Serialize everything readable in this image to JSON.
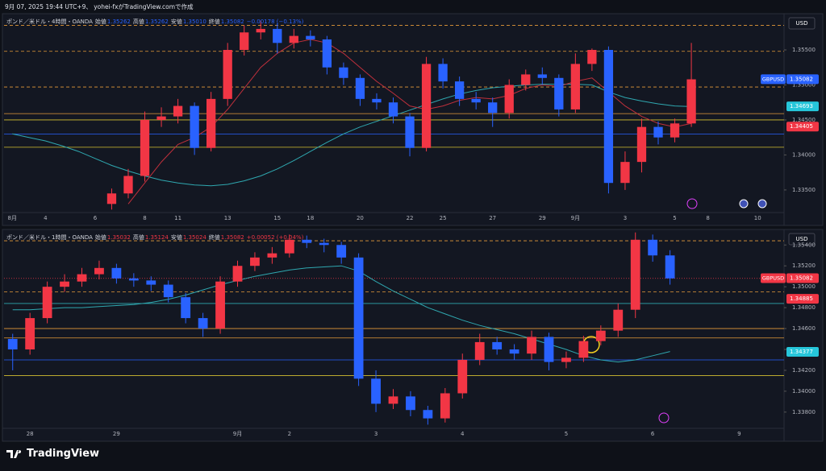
{
  "header": "9月 07, 2025 19:44 UTC+9、 yohei-fxがTradingView.comで作成",
  "footer": "TradingView",
  "chart_data": [
    {
      "type": "candlestick",
      "title": "ポンド／米ドル・4時間・OANDA",
      "currency": "USD",
      "symbol": "GBPUSD",
      "info": [
        {
          "label": "始値",
          "value": "1.35262"
        },
        {
          "label": "高値",
          "value": "1.35262"
        },
        {
          "label": "安値",
          "value": "1.35010"
        },
        {
          "label": "終値",
          "value": "1.35082"
        }
      ],
      "change": "−0.00178 (−0.13%)",
      "info_color": "#2962ff",
      "up_color": "#f23645",
      "down_color": "#2962ff",
      "categories": [
        "8月",
        null,
        "4",
        null,
        null,
        "6",
        null,
        null,
        "8",
        null,
        "11",
        null,
        null,
        "13",
        null,
        null,
        "15",
        null,
        "18",
        null,
        null,
        "20",
        null,
        null,
        "22",
        null,
        "25",
        null,
        null,
        "27",
        null,
        null,
        "29",
        null,
        "9月",
        null,
        null,
        "3",
        null,
        null,
        "5",
        null,
        "8",
        null,
        null,
        "10",
        null
      ],
      "open": [
        null,
        null,
        null,
        null,
        null,
        null,
        1.333,
        1.3345,
        1.337,
        1.345,
        1.3455,
        1.347,
        1.341,
        1.348,
        1.355,
        1.3575,
        1.358,
        1.356,
        1.357,
        1.3565,
        1.3525,
        1.351,
        1.348,
        1.3475,
        1.3455,
        1.341,
        1.353,
        1.3505,
        1.348,
        1.3475,
        1.346,
        1.35,
        1.3515,
        1.351,
        1.3465,
        1.353,
        1.355,
        1.336,
        1.339,
        1.344,
        1.3425,
        1.3445,
        null,
        null,
        null,
        null,
        null
      ],
      "high": [
        null,
        null,
        null,
        null,
        null,
        null,
        1.3352,
        1.338,
        1.3462,
        1.3468,
        1.348,
        1.3475,
        1.349,
        1.356,
        1.3585,
        1.3592,
        1.3588,
        1.358,
        1.3578,
        1.357,
        1.3532,
        1.3515,
        1.3488,
        1.3482,
        1.346,
        1.354,
        1.3538,
        1.3512,
        1.349,
        1.3482,
        1.3508,
        1.3522,
        1.3525,
        1.3515,
        1.3545,
        1.3552,
        1.3555,
        1.3405,
        1.3452,
        1.3448,
        1.3452,
        1.356,
        null,
        null,
        null,
        null,
        null
      ],
      "low": [
        null,
        null,
        null,
        null,
        null,
        null,
        1.3322,
        1.3338,
        1.3362,
        1.344,
        1.3445,
        1.34,
        1.3405,
        1.347,
        1.3542,
        1.3565,
        1.3545,
        1.3552,
        1.3555,
        1.3515,
        1.35,
        1.347,
        1.3465,
        1.3445,
        1.3398,
        1.3405,
        1.3495,
        1.347,
        1.3465,
        1.344,
        1.3452,
        1.3492,
        1.35,
        1.3455,
        1.346,
        1.352,
        1.3345,
        1.335,
        1.3375,
        1.3415,
        1.3418,
        1.344,
        null,
        null,
        null,
        null,
        null
      ],
      "close": [
        null,
        null,
        null,
        null,
        null,
        null,
        1.3345,
        1.337,
        1.345,
        1.3455,
        1.347,
        1.341,
        1.348,
        1.355,
        1.3575,
        1.358,
        1.356,
        1.357,
        1.3565,
        1.3525,
        1.351,
        1.348,
        1.3475,
        1.3455,
        1.341,
        1.353,
        1.3505,
        1.348,
        1.3475,
        1.346,
        1.35,
        1.3515,
        1.351,
        1.3465,
        1.353,
        1.355,
        1.336,
        1.339,
        1.344,
        1.3425,
        1.3445,
        1.3508,
        null,
        null,
        null,
        null,
        null
      ],
      "series": [
        {
          "color": "#2fa8b0",
          "values": [
            1.343,
            1.3425,
            1.342,
            1.3413,
            1.3405,
            1.3395,
            1.3385,
            1.3377,
            1.337,
            1.3364,
            1.336,
            1.3357,
            1.3356,
            1.3358,
            1.3363,
            1.337,
            1.338,
            1.3392,
            1.3405,
            1.3418,
            1.343,
            1.344,
            1.3448,
            1.3456,
            1.3464,
            1.3472,
            1.348,
            1.3487,
            1.3492,
            1.3496,
            1.3498,
            1.35,
            1.3501,
            1.3501,
            1.3501,
            1.35,
            1.349,
            1.3482,
            1.3477,
            1.3473,
            1.347,
            1.3469,
            null,
            null,
            null,
            null,
            null
          ]
        },
        {
          "color": "#c0303c",
          "values": [
            null,
            null,
            null,
            null,
            null,
            null,
            null,
            1.333,
            1.336,
            1.339,
            1.3415,
            1.3425,
            1.344,
            1.3465,
            1.3495,
            1.3525,
            1.3545,
            1.356,
            1.3565,
            1.356,
            1.3545,
            1.3525,
            1.3505,
            1.3488,
            1.347,
            1.3465,
            1.347,
            1.3478,
            1.3482,
            1.348,
            1.3485,
            1.3495,
            1.35,
            1.3498,
            1.3505,
            1.351,
            1.349,
            1.347,
            1.3455,
            1.3445,
            1.344,
            1.3445,
            null,
            null,
            null,
            null,
            null
          ]
        }
      ],
      "ylim": [
        1.332,
        1.3596
      ],
      "yticks": [
        {
          "value": 1.355,
          "label": "1.35500"
        },
        {
          "value": 1.35,
          "label": "1.35000"
        },
        {
          "value": 1.345,
          "label": "1.34500"
        },
        {
          "value": 1.34,
          "label": "1.34000"
        },
        {
          "value": 1.335,
          "label": "1.33500"
        }
      ],
      "levels": [
        {
          "value": 1.3585,
          "color": "#e69b3a",
          "style": "dashed"
        },
        {
          "value": 1.3548,
          "color": "#e69b3a",
          "style": "dashed"
        },
        {
          "value": 1.3497,
          "color": "#e69b3a",
          "style": "dashed"
        },
        {
          "value": 1.3459,
          "color": "#e69b3a",
          "style": "solid"
        },
        {
          "value": 1.345,
          "color": "#d4c030",
          "style": "solid"
        },
        {
          "value": 1.343,
          "color": "#2962ff",
          "style": "solid"
        },
        {
          "value": 1.3411,
          "color": "#d4c030",
          "style": "solid"
        }
      ],
      "price_labels": [
        {
          "value": 1.35082,
          "color": "#2962ff",
          "tag": "GBPUSD"
        },
        {
          "value": 1.34693,
          "color": "#26c6da"
        },
        {
          "value": 1.34405,
          "color": "#f23645"
        }
      ]
    },
    {
      "type": "candlestick",
      "title": "ポンド／米ドル・1時間・OANDA",
      "currency": "USD",
      "symbol": "GBPUSD",
      "info": [
        {
          "label": "始値",
          "value": "1.35032"
        },
        {
          "label": "高値",
          "value": "1.35124"
        },
        {
          "label": "安値",
          "value": "1.35024"
        },
        {
          "label": "終値",
          "value": "1.35082"
        }
      ],
      "change": "+0.00052 (+0.04%)",
      "info_color": "#f23645",
      "up_color": "#f23645",
      "down_color": "#2962ff",
      "categories": [
        null,
        "28",
        null,
        null,
        null,
        null,
        "29",
        null,
        null,
        null,
        null,
        null,
        null,
        "9月",
        null,
        null,
        "2",
        null,
        null,
        null,
        null,
        "3",
        null,
        null,
        null,
        null,
        "4",
        null,
        null,
        null,
        null,
        null,
        "5",
        null,
        null,
        null,
        null,
        "6",
        null,
        null,
        null,
        null,
        "9",
        null,
        null
      ],
      "open": [
        1.345,
        1.344,
        1.347,
        1.35,
        1.3505,
        1.3512,
        1.3518,
        1.3508,
        1.3506,
        1.3502,
        1.349,
        1.347,
        1.346,
        1.3505,
        1.352,
        1.3528,
        1.3532,
        1.3545,
        1.3542,
        1.354,
        1.3528,
        1.3412,
        1.3388,
        1.3395,
        1.3382,
        1.3374,
        1.3398,
        1.343,
        1.3447,
        1.344,
        1.3436,
        1.3452,
        1.3428,
        1.3432,
        1.3448,
        1.3458,
        1.3478,
        1.3545,
        1.353,
        null,
        null,
        null,
        null,
        null,
        null
      ],
      "high": [
        1.3455,
        1.3475,
        1.3505,
        1.3512,
        1.3518,
        1.3525,
        1.3522,
        1.3513,
        1.351,
        1.3506,
        1.3494,
        1.3475,
        1.351,
        1.3525,
        1.3533,
        1.3538,
        1.355,
        1.3549,
        1.3546,
        1.3543,
        1.3532,
        1.342,
        1.3402,
        1.34,
        1.3386,
        1.3403,
        1.3436,
        1.3455,
        1.3452,
        1.3445,
        1.3458,
        1.3456,
        1.3438,
        1.3453,
        1.3463,
        1.3484,
        1.3552,
        1.355,
        1.3535,
        null,
        null,
        null,
        null,
        null,
        null
      ],
      "low": [
        1.342,
        1.3435,
        1.3465,
        1.3495,
        1.35,
        1.3507,
        1.3503,
        1.35,
        1.3496,
        1.3485,
        1.3465,
        1.3452,
        1.3455,
        1.35,
        1.3515,
        1.3522,
        1.3528,
        1.3537,
        1.3533,
        1.3522,
        1.3405,
        1.338,
        1.3383,
        1.3376,
        1.3368,
        1.337,
        1.3393,
        1.3425,
        1.3435,
        1.343,
        1.343,
        1.342,
        1.3422,
        1.3428,
        1.3444,
        1.3452,
        1.347,
        1.3524,
        1.3502,
        null,
        null,
        null,
        null,
        null,
        null
      ],
      "close": [
        1.344,
        1.347,
        1.35,
        1.3505,
        1.3512,
        1.3518,
        1.3508,
        1.3506,
        1.3502,
        1.349,
        1.347,
        1.346,
        1.3505,
        1.352,
        1.3528,
        1.3532,
        1.3545,
        1.3542,
        1.354,
        1.3528,
        1.3412,
        1.3388,
        1.3395,
        1.3382,
        1.3374,
        1.3398,
        1.343,
        1.3447,
        1.344,
        1.3436,
        1.3452,
        1.3428,
        1.3432,
        1.3448,
        1.3458,
        1.3478,
        1.3545,
        1.353,
        1.3508,
        null,
        null,
        null,
        null,
        null,
        null
      ],
      "series": [
        {
          "color": "#2fa8b0",
          "values": [
            1.3478,
            1.3478,
            1.3479,
            1.348,
            1.348,
            1.3481,
            1.3482,
            1.3483,
            1.3485,
            1.3488,
            1.3492,
            1.3497,
            1.3502,
            1.3506,
            1.351,
            1.3513,
            1.3516,
            1.3518,
            1.3519,
            1.352,
            1.3515,
            1.3505,
            1.3496,
            1.3488,
            1.348,
            1.3474,
            1.3468,
            1.3463,
            1.3459,
            1.3455,
            1.345,
            1.3445,
            1.344,
            1.3434,
            1.343,
            1.3428,
            1.343,
            1.3434,
            1.3438,
            null,
            null,
            null,
            null,
            null,
            null
          ]
        }
      ],
      "ylim": [
        1.3366,
        1.3551
      ],
      "yticks": [
        {
          "value": 1.354,
          "label": "1.35400"
        },
        {
          "value": 1.352,
          "label": "1.35200"
        },
        {
          "value": 1.35,
          "label": "1.35000"
        },
        {
          "value": 1.348,
          "label": "1.34800"
        },
        {
          "value": 1.346,
          "label": "1.34600"
        },
        {
          "value": 1.344,
          "label": "1.34400"
        },
        {
          "value": 1.342,
          "label": "1.34200"
        },
        {
          "value": 1.34,
          "label": "1.34000"
        },
        {
          "value": 1.338,
          "label": "1.33800"
        }
      ],
      "levels": [
        {
          "value": 1.3544,
          "color": "#e69b3a",
          "style": "dashed"
        },
        {
          "value": 1.3508,
          "color": "#f23645",
          "style": "dotted"
        },
        {
          "value": 1.3495,
          "color": "#e69b3a",
          "style": "dashed"
        },
        {
          "value": 1.3484,
          "color": "#2fa8b0",
          "style": "solid"
        },
        {
          "value": 1.346,
          "color": "#e69b3a",
          "style": "solid"
        },
        {
          "value": 1.3451,
          "color": "#e69b3a",
          "style": "solid"
        },
        {
          "value": 1.343,
          "color": "#2962ff",
          "style": "solid"
        },
        {
          "value": 1.3415,
          "color": "#d4c030",
          "style": "solid"
        }
      ],
      "price_labels": [
        {
          "value": 1.35082,
          "color": "#f23645",
          "tag": "GBPUSD"
        },
        {
          "value": 1.34885,
          "color": "#f23645"
        },
        {
          "value": 1.34377,
          "color": "#26c6da"
        }
      ]
    }
  ]
}
